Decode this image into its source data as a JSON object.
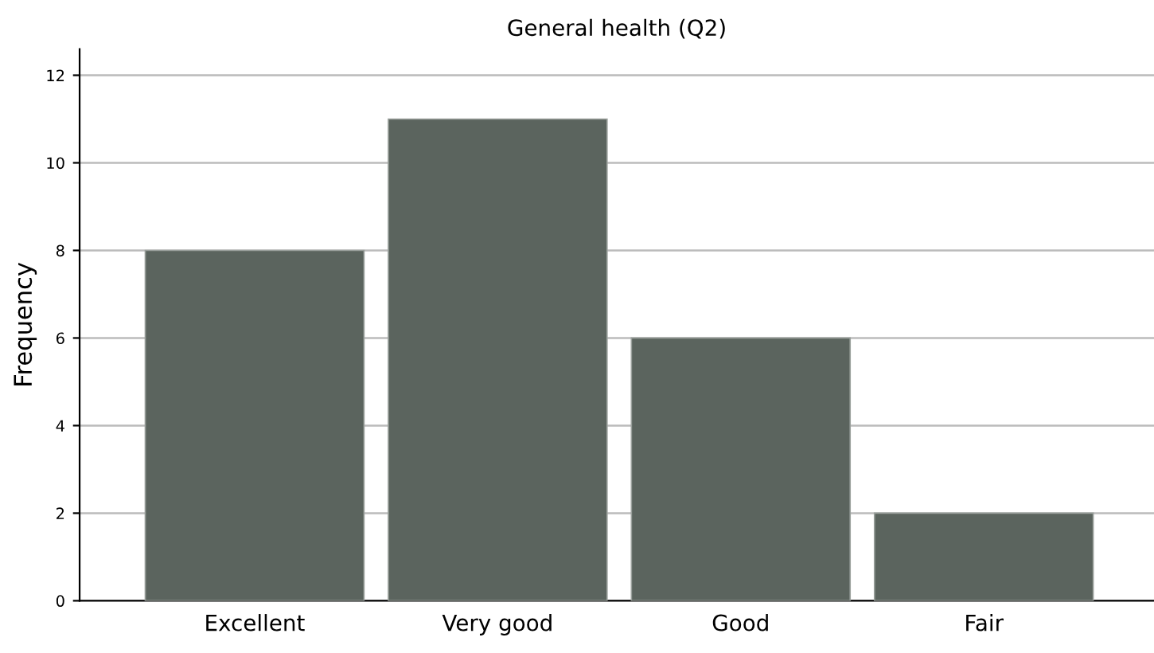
{
  "chart_data": {
    "type": "bar",
    "title": "General health (Q2)",
    "ylabel": "Frequency",
    "categories": [
      "Excellent",
      "Very good",
      "Good",
      "Fair"
    ],
    "values": [
      8,
      11,
      6,
      2
    ],
    "color": "#5b645e",
    "ylim": [
      0,
      12.6
    ],
    "yticks": [
      0,
      2,
      4,
      6,
      8,
      10,
      12
    ],
    "grid": "y",
    "legend": false
  }
}
